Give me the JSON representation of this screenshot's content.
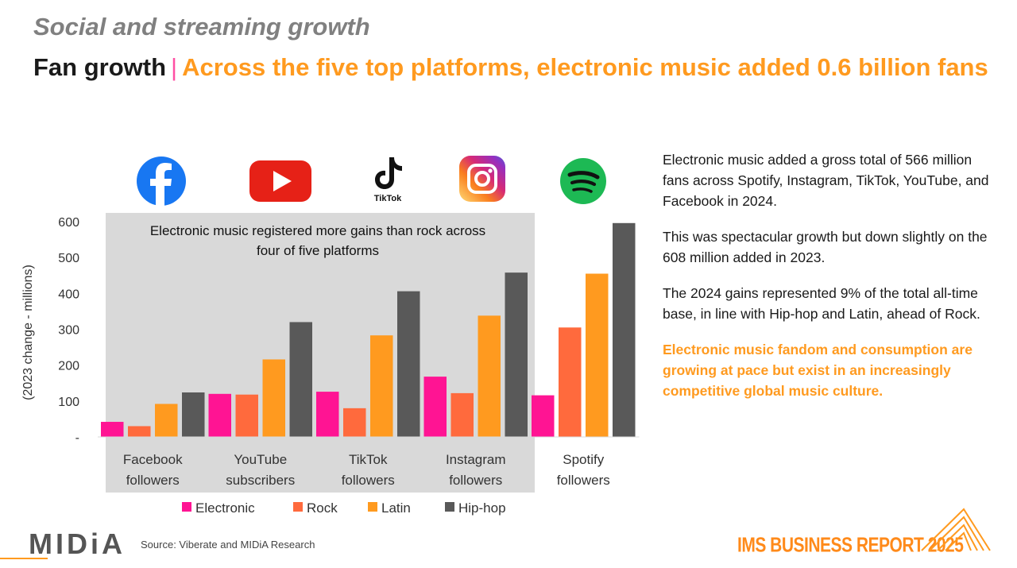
{
  "header": {
    "subtitle": "Social and streaming growth",
    "title_main": "Fan growth",
    "title_sep": "|",
    "title_accent": "Across the five top platforms, electronic music added 0.6 billion fans"
  },
  "side_text": {
    "p1": "Electronic music added a gross total of 566 million fans across Spotify, Instagram, TikTok, YouTube, and Facebook in 2024.",
    "p2": "This was spectacular growth but down slightly on the 608 million added in 2023.",
    "p3": "The 2024 gains represented 9% of the total all-time base, in line with Hip-hop and Latin, ahead of Rock.",
    "p4": "Electronic music fandom and consumption are growing at pace but exist in an increasingly competitive global music culture."
  },
  "footer": {
    "source": "Source: Viberate and MIDiA Research",
    "logo": "MIDiA",
    "report": "IMS BUSINESS REPORT 2025"
  },
  "platform_icons": [
    "facebook-icon",
    "youtube-icon",
    "tiktok-icon",
    "instagram-icon",
    "spotify-icon"
  ],
  "tiktok_icon_label": "TikTok",
  "colors": {
    "Electronic": "#ff1493",
    "Rock": "#ff6a3d",
    "Latin": "#ff9a1f",
    "Hip-hop": "#595959",
    "highlight_bg": "#d9d9d9",
    "accent": "#ff9a1f"
  },
  "chart_data": {
    "type": "bar",
    "categories": [
      "Facebook followers",
      "YouTube subscribers",
      "TikTok followers",
      "Instagram followers",
      "Spotify followers"
    ],
    "category_lines": [
      [
        "Facebook",
        "followers"
      ],
      [
        "YouTube",
        "subscribers"
      ],
      [
        "TikTok",
        "followers"
      ],
      [
        "Instagram",
        "followers"
      ],
      [
        "Spotify",
        "followers"
      ]
    ],
    "series": [
      {
        "name": "Electronic",
        "values": [
          42,
          120,
          126,
          168,
          116
        ]
      },
      {
        "name": "Rock",
        "values": [
          30,
          118,
          80,
          122,
          305
        ]
      },
      {
        "name": "Latin",
        "values": [
          92,
          216,
          283,
          338,
          455
        ]
      },
      {
        "name": "Hip-hop",
        "values": [
          124,
          320,
          406,
          458,
          596
        ]
      }
    ],
    "ylabel": "(2023 change - millions)",
    "ylim": [
      0,
      600
    ],
    "yticks": [
      0,
      100,
      200,
      300,
      400,
      500,
      600
    ],
    "ytick_labels": [
      "-",
      "100",
      "200",
      "300",
      "400",
      "500",
      "600"
    ],
    "annotation": "Electronic music registered more gains than rock across four of five platforms",
    "annotation_lines": [
      "Electronic music registered more gains than rock across",
      "four of five platforms"
    ],
    "highlighted_categories": [
      "Facebook followers",
      "YouTube subscribers",
      "TikTok followers",
      "Instagram followers"
    ],
    "legend_position": "bottom",
    "grid": false
  }
}
